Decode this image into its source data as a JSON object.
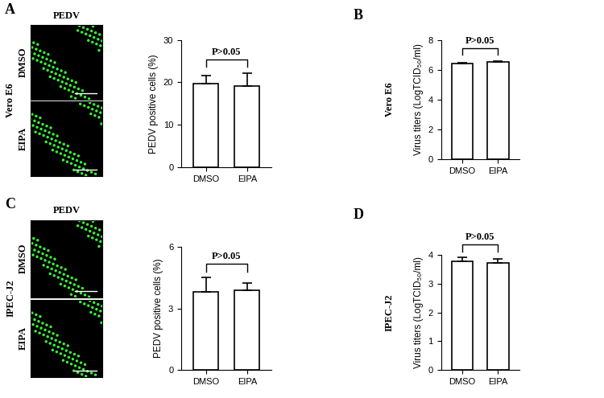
{
  "chart_data": [
    {
      "panel": "A",
      "type": "bar",
      "ylabel": "PEDV positive cells (%)",
      "categories": [
        "DMSO",
        "EIPA"
      ],
      "values": [
        19.6,
        19.1
      ],
      "error": [
        2.0,
        3.0
      ],
      "color": "#ffffff",
      "ylim": [
        0,
        30
      ],
      "yticks": [
        0,
        10,
        20,
        30
      ],
      "annotation": "P>0.05"
    },
    {
      "panel": "B",
      "type": "bar",
      "side_label": "Vero E6",
      "ylabel": "Virus titers (LogTCID₅₀/ml)",
      "categories": [
        "DMSO",
        "EIPA"
      ],
      "values": [
        6.4,
        6.5
      ],
      "error": [
        0.08,
        0.08
      ],
      "color": "#ffffff",
      "ylim": [
        0,
        8
      ],
      "yticks": [
        0,
        2,
        4,
        6,
        8
      ],
      "annotation": "P>0.05"
    },
    {
      "panel": "C",
      "type": "bar",
      "ylabel": "PEDV positive cells (%)",
      "categories": [
        "DMSO",
        "EIPA"
      ],
      "values": [
        3.8,
        3.9
      ],
      "error": [
        0.7,
        0.35
      ],
      "color": "#ffffff",
      "ylim": [
        0,
        6
      ],
      "yticks": [
        0,
        3,
        6
      ],
      "annotation": "P>0.05"
    },
    {
      "panel": "D",
      "type": "bar",
      "side_label": "IPEC-J2",
      "ylabel": "Virus titers (LogTCID₅₀/ml)",
      "categories": [
        "DMSO",
        "EIPA"
      ],
      "values": [
        3.78,
        3.72
      ],
      "error": [
        0.13,
        0.13
      ],
      "color": "#ffffff",
      "ylim": [
        0,
        4
      ],
      "yticks": [
        0,
        1,
        2,
        3,
        4
      ],
      "annotation": "P>0.05"
    }
  ],
  "images": [
    {
      "panel": "A",
      "header": "PEDV",
      "cell_line": "Vero E6",
      "conditions": [
        "DMSO",
        "EIPA"
      ]
    },
    {
      "panel": "C",
      "header": "PEDV",
      "cell_line": "IPEC-J2",
      "conditions": [
        "DMSO",
        "EIPA"
      ]
    }
  ]
}
